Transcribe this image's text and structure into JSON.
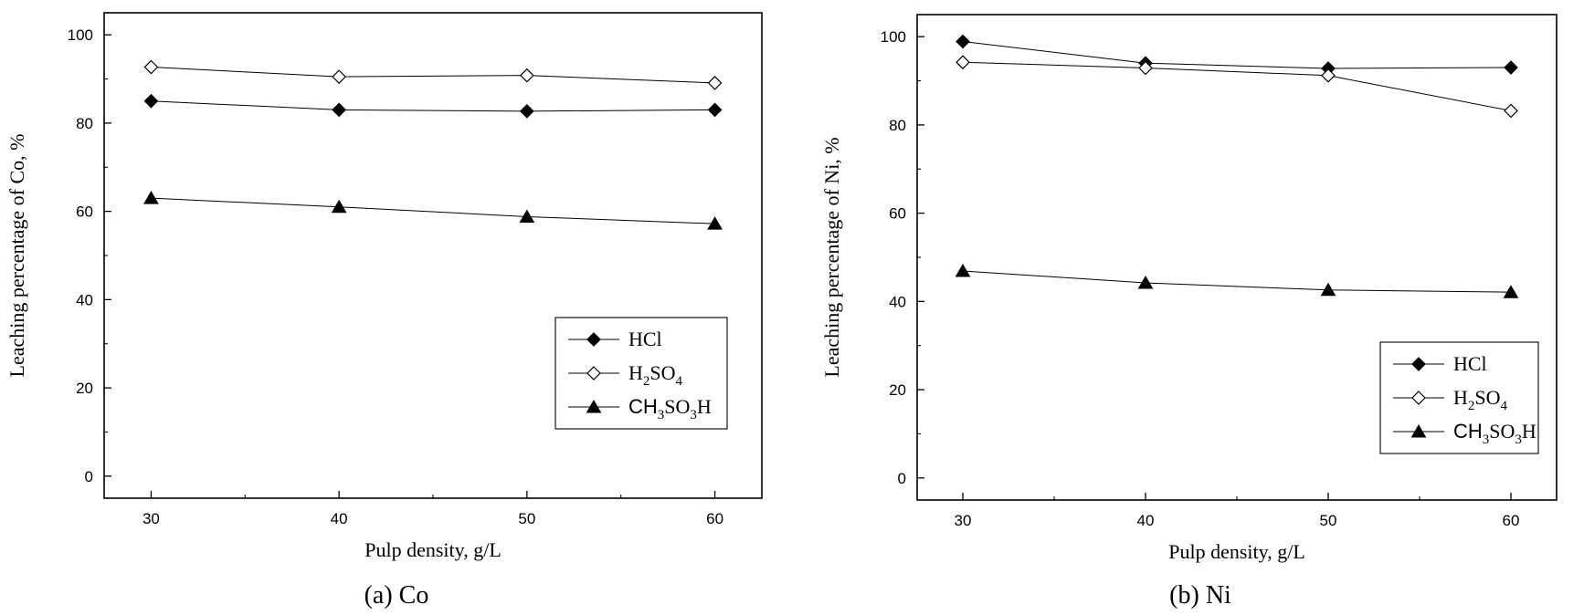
{
  "chart_data": [
    {
      "type": "line",
      "caption": "(a) Co",
      "xlabel": "Pulp density, g/L",
      "ylabel": "Leaching percentage of Co, %",
      "x": [
        30,
        40,
        50,
        60
      ],
      "xlim": [
        27.5,
        62.5
      ],
      "ylim": [
        -5,
        105
      ],
      "xticks": [
        "30",
        "40",
        "50",
        "60"
      ],
      "yticks": [
        "0",
        "20",
        "40",
        "60",
        "80",
        "100"
      ],
      "legend_position": "lower-right",
      "series": [
        {
          "name": "HCl",
          "marker": "filled-diamond",
          "values": [
            85.0,
            83.0,
            82.7,
            83.0
          ]
        },
        {
          "name": "H2SO4",
          "marker": "open-diamond",
          "values": [
            92.7,
            90.5,
            90.8,
            89.1
          ]
        },
        {
          "name": "CH3SO3H",
          "marker": "filled-triangle",
          "values": [
            63.0,
            61.0,
            58.8,
            57.2
          ]
        }
      ]
    },
    {
      "type": "line",
      "caption": "(b) Ni",
      "xlabel": "Pulp density, g/L",
      "ylabel": "Leaching percentage of Ni, %",
      "x": [
        30,
        40,
        50,
        60
      ],
      "xlim": [
        27.5,
        62.5
      ],
      "ylim": [
        -5,
        105
      ],
      "xticks": [
        "30",
        "40",
        "50",
        "60"
      ],
      "yticks": [
        "0",
        "20",
        "40",
        "60",
        "80",
        "100"
      ],
      "legend_position": "lower-right",
      "series": [
        {
          "name": "HCl",
          "marker": "filled-diamond",
          "values": [
            98.9,
            94.0,
            92.8,
            93.0
          ]
        },
        {
          "name": "H2SO4",
          "marker": "open-diamond",
          "values": [
            94.2,
            92.9,
            91.2,
            83.2
          ]
        },
        {
          "name": "CH3SO3H",
          "marker": "filled-triangle",
          "values": [
            46.9,
            44.2,
            42.6,
            42.1
          ]
        }
      ]
    }
  ]
}
